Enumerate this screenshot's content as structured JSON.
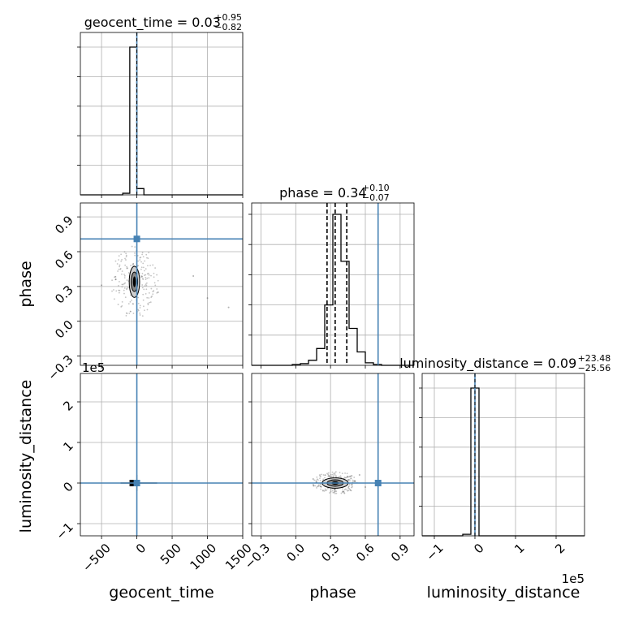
{
  "chart_data": {
    "type": "corner",
    "parameters": [
      "geocent_time",
      "phase",
      "luminosity_distance"
    ],
    "axis_labels": {
      "geocent_time": "geocent_time",
      "phase": "phase",
      "luminosity_distance": "luminosity_distance"
    },
    "titles": [
      {
        "param": "geocent_time",
        "text": "geocent_time = 0.03",
        "plus": "+0.95",
        "minus": "−0.82"
      },
      {
        "param": "phase",
        "text": "phase = 0.34",
        "plus": "+0.10",
        "minus": "−0.07"
      },
      {
        "param": "luminosity_distance",
        "text": "luminosity_distance = 0.09",
        "plus": "+23.48",
        "minus": "−25.56"
      }
    ],
    "ranges": {
      "geocent_time": [
        -800,
        1500
      ],
      "phase": [
        -0.38,
        1.02
      ],
      "luminosity_distance": [
        -130000,
        270000
      ]
    },
    "ticks": {
      "geocent_time": {
        "values": [
          -500,
          0,
          500,
          1000,
          1500
        ],
        "labels": [
          "−500",
          "0",
          "500",
          "1000",
          "1500"
        ]
      },
      "phase": {
        "values": [
          -0.3,
          0.0,
          0.3,
          0.6,
          0.9
        ],
        "labels": [
          "−0.3",
          "0.0",
          "0.3",
          "0.6",
          "0.9"
        ]
      },
      "luminosity_distance": {
        "values": [
          -100000,
          0,
          100000,
          200000
        ],
        "labels": [
          "−1",
          "0",
          "1",
          "2"
        ],
        "offset_text": "1e5"
      }
    },
    "truths": {
      "geocent_time": 0,
      "phase": 0.71,
      "luminosity_distance": 0
    },
    "quantiles": {
      "phase": [
        0.27,
        0.34,
        0.44
      ],
      "geocent_time": [
        -0.79,
        0.03,
        0.98
      ],
      "luminosity_distance": [
        -25.47,
        0.09,
        23.57
      ]
    },
    "histograms": {
      "geocent_time": {
        "bin_edges": [
          -800,
          -700,
          -600,
          -500,
          -400,
          -300,
          -200,
          -100,
          0,
          100,
          200,
          300,
          400,
          500,
          600,
          700,
          800,
          900,
          1000,
          1100,
          1200,
          1300,
          1400,
          1500
        ],
        "counts": [
          0,
          0,
          0,
          0,
          0,
          0,
          1,
          95,
          4,
          0,
          0,
          0,
          0,
          0,
          0,
          0,
          0,
          0,
          0,
          0,
          0,
          0,
          0
        ]
      },
      "phase": {
        "bin_edges": [
          -0.38,
          -0.31,
          -0.24,
          -0.17,
          -0.1,
          -0.03,
          0.04,
          0.11,
          0.18,
          0.25,
          0.32,
          0.39,
          0.46,
          0.53,
          0.6,
          0.67,
          0.74,
          0.81,
          0.88,
          0.95,
          1.02
        ],
        "counts": [
          0,
          0,
          0,
          0,
          0,
          0.5,
          1,
          3,
          10,
          36,
          90,
          62,
          22,
          8,
          1.5,
          0.5,
          0,
          0,
          0,
          0
        ]
      },
      "luminosity_distance": {
        "bin_edges": [
          -130000,
          -110000,
          -90000,
          -70000,
          -50000,
          -30000,
          -10000,
          10000,
          30000,
          50000,
          70000,
          90000,
          110000,
          130000,
          150000,
          170000,
          190000,
          210000,
          230000,
          250000,
          270000
        ],
        "counts": [
          0,
          0,
          0,
          0,
          0,
          1,
          98,
          0,
          0,
          0,
          0,
          0,
          0,
          0,
          0,
          0,
          0,
          0,
          0,
          0
        ]
      }
    },
    "grid": true,
    "truth_color": "#4682b4",
    "line_color": "#000000"
  }
}
